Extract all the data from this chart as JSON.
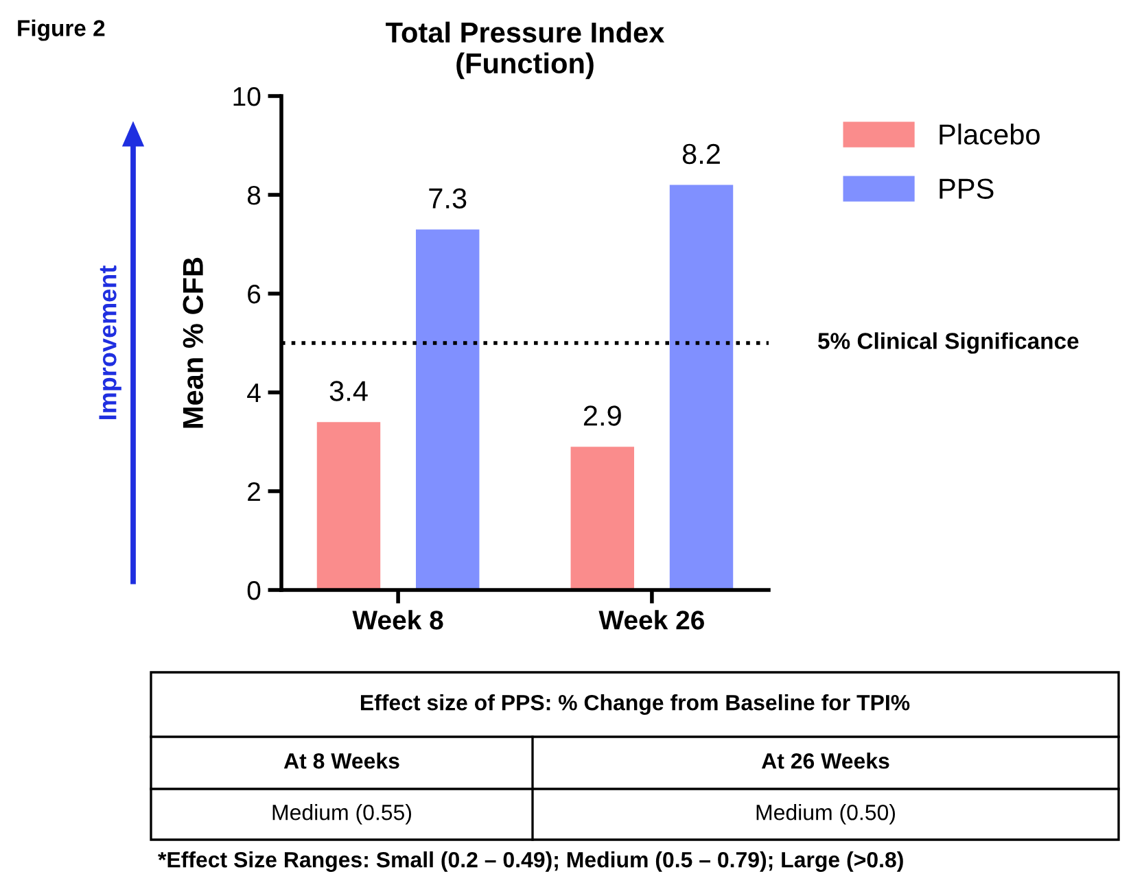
{
  "chart_data": {
    "type": "bar",
    "title": "Total Pressure Index\n(Function)",
    "ylabel": "Mean % CFB",
    "categories": [
      "Week 8",
      "Week 26"
    ],
    "series": [
      {
        "name": "Placebo",
        "color": "#fa8c8c",
        "values": [
          3.4,
          2.9
        ]
      },
      {
        "name": "PPS",
        "color": "#8090ff",
        "values": [
          7.3,
          8.2
        ]
      }
    ],
    "ylim": [
      0,
      10
    ],
    "yticks": [
      0,
      2,
      4,
      6,
      8,
      10
    ],
    "grid": false,
    "legend": "top right",
    "data_labels": true,
    "ref_lines": [
      {
        "axis": "y",
        "value": 5,
        "label": "5% Clinical Significance",
        "color": "#000000",
        "line_style": "dotted"
      }
    ],
    "annotations": [
      "Figure 2",
      "Improvement",
      "Effect size of PPS: % Change from Baseline for TPI%",
      "At 8 Weeks",
      "At 26 Weeks",
      "Medium (0.55)",
      "Medium (0.50)",
      "*Effect Size Ranges: Small (0.2 – 0.49); Medium (0.5 – 0.79); Large (>0.8)"
    ]
  }
}
